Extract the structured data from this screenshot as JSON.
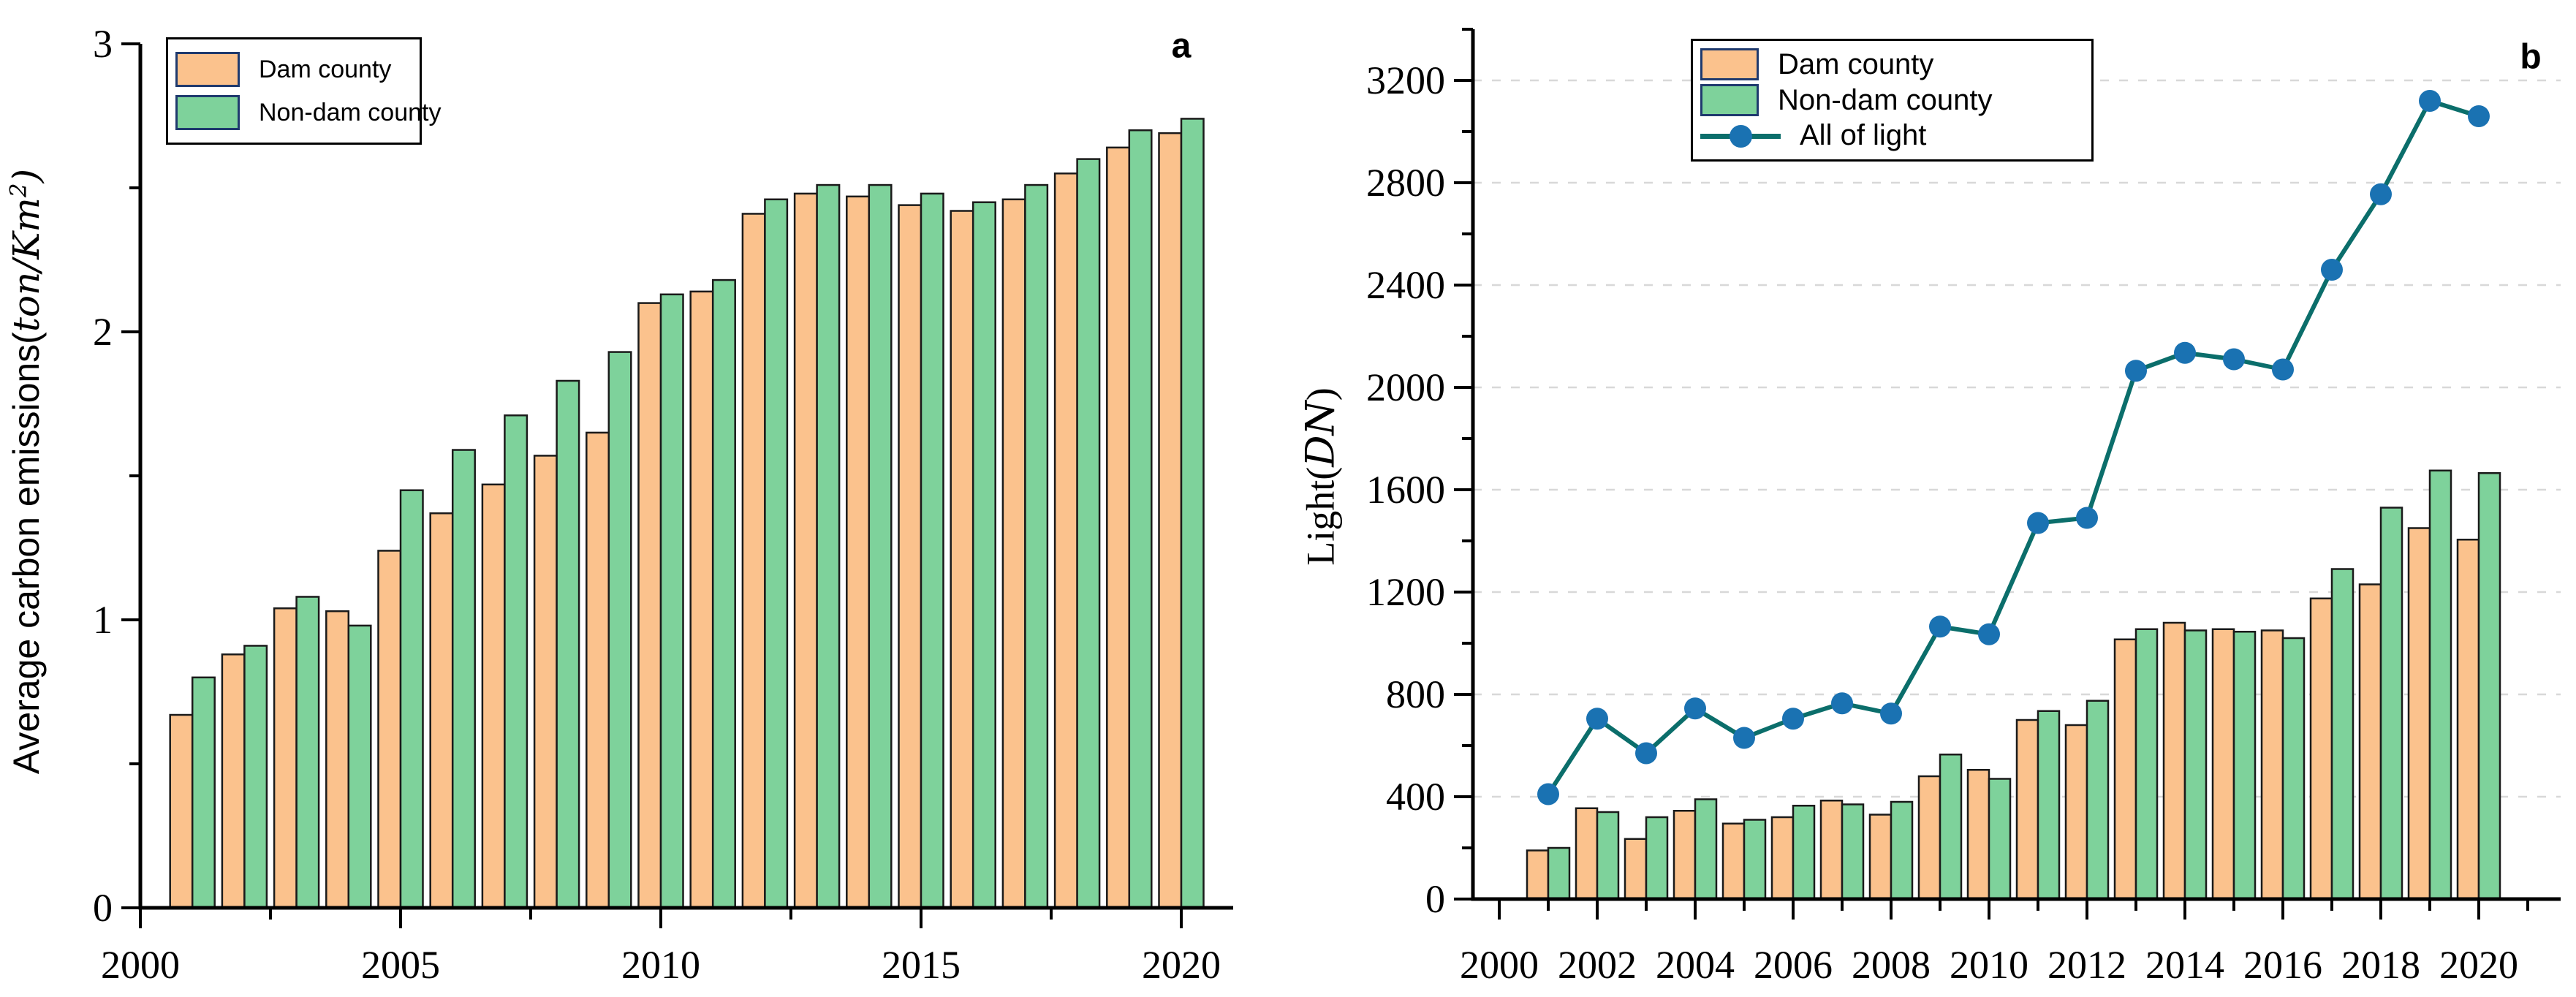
{
  "figure": {
    "panel_a_label": "a",
    "panel_b_label": "b",
    "ylabel_a_prefix": "Average carbon emissions(",
    "ylabel_a_math": "ton/Km",
    "ylabel_a_sup": "2",
    "ylabel_a_suffix": ")",
    "ylabel_b_prefix": "Light(",
    "ylabel_b_math": "DN",
    "ylabel_b_suffix": ")"
  },
  "colors": {
    "dam_bar_fill": "#FBC28D",
    "non_dam_bar_fill": "#7ED29B",
    "bar_edge": "#1A1A1A",
    "swatch_border": "#1F3A6E",
    "line_color": "#0B6E6B",
    "marker_color": "#1A72B2",
    "grid_color": "#D8D8D8",
    "axis_color": "#000000"
  },
  "legend_a": {
    "items": [
      {
        "label": "Dam county",
        "color": "#FBC28D"
      },
      {
        "label": "Non-dam county",
        "color": "#7ED29B"
      }
    ]
  },
  "legend_b": {
    "items": [
      {
        "label": "Dam county",
        "color": "#FBC28D"
      },
      {
        "label": "Non-dam county",
        "color": "#7ED29B"
      },
      {
        "label": "All of light",
        "type": "line",
        "line_color": "#0B6E6B",
        "marker_color": "#1A72B2"
      }
    ]
  },
  "chart_data": [
    {
      "type": "bar",
      "title": "a",
      "ylabel": "Average carbon emissions(ton/Km²)",
      "xlabel": "",
      "categories": [
        2001,
        2002,
        2003,
        2004,
        2005,
        2006,
        2007,
        2008,
        2009,
        2010,
        2011,
        2012,
        2013,
        2014,
        2015,
        2016,
        2017,
        2018,
        2019,
        2020
      ],
      "series": [
        {
          "name": "Dam county",
          "values": [
            0.67,
            0.88,
            1.04,
            1.03,
            1.24,
            1.37,
            1.47,
            1.57,
            1.65,
            2.1,
            2.14,
            2.41,
            2.48,
            2.47,
            2.44,
            2.42,
            2.46,
            2.55,
            2.64,
            2.69
          ]
        },
        {
          "name": "Non-dam county",
          "values": [
            0.8,
            0.91,
            1.08,
            0.98,
            1.45,
            1.59,
            1.71,
            1.83,
            1.93,
            2.13,
            2.18,
            2.46,
            2.51,
            2.51,
            2.48,
            2.45,
            2.51,
            2.6,
            2.7,
            2.74
          ]
        }
      ],
      "ylim": [
        0,
        3
      ],
      "grid": false,
      "legend_position": "upper left",
      "y_ticks_major": [
        0,
        1,
        2,
        3
      ],
      "y_ticks_minor": [
        0.5,
        1.5,
        2.5
      ],
      "x_ticks_major": [
        2000,
        2005,
        2010,
        2015,
        2020
      ],
      "x_ticks_minor": [
        2002.5,
        2007.5,
        2012.5,
        2017.5
      ]
    },
    {
      "type": "bar+line",
      "title": "b",
      "ylabel": "Light(DN)",
      "xlabel": "",
      "categories": [
        2001,
        2002,
        2003,
        2004,
        2005,
        2006,
        2007,
        2008,
        2009,
        2010,
        2011,
        2012,
        2013,
        2014,
        2015,
        2016,
        2017,
        2018,
        2019,
        2020
      ],
      "series": [
        {
          "name": "Dam county",
          "values": [
            190,
            355,
            235,
            345,
            295,
            320,
            385,
            330,
            480,
            505,
            700,
            680,
            1015,
            1080,
            1055,
            1050,
            1175,
            1230,
            1450,
            1405
          ]
        },
        {
          "name": "Non-dam county",
          "values": [
            200,
            340,
            320,
            390,
            310,
            365,
            370,
            380,
            565,
            470,
            735,
            775,
            1055,
            1050,
            1045,
            1020,
            1290,
            1530,
            1675,
            1665
          ]
        }
      ],
      "line_series": {
        "name": "All of light",
        "values": [
          410,
          705,
          570,
          745,
          630,
          705,
          765,
          725,
          1065,
          1035,
          1470,
          1490,
          2065,
          2135,
          2110,
          2070,
          2460,
          2755,
          3120,
          3060
        ]
      },
      "ylim": [
        0,
        3400
      ],
      "grid": true,
      "grid_lines_at": [
        400,
        800,
        1200,
        1600,
        2000,
        2400,
        2800,
        3200
      ],
      "legend_position": "upper left",
      "y_ticks_major": [
        0,
        400,
        800,
        1200,
        1600,
        2000,
        2400,
        2800,
        3200
      ],
      "y_ticks_minor": [
        200,
        600,
        1000,
        1400,
        1800,
        2200,
        2600,
        3000,
        3400
      ],
      "x_ticks_major": [
        2000,
        2002,
        2004,
        2006,
        2008,
        2010,
        2012,
        2014,
        2016,
        2018,
        2020
      ],
      "x_ticks_minor": [
        2001,
        2003,
        2005,
        2007,
        2009,
        2011,
        2013,
        2015,
        2017,
        2019,
        2021
      ]
    }
  ]
}
